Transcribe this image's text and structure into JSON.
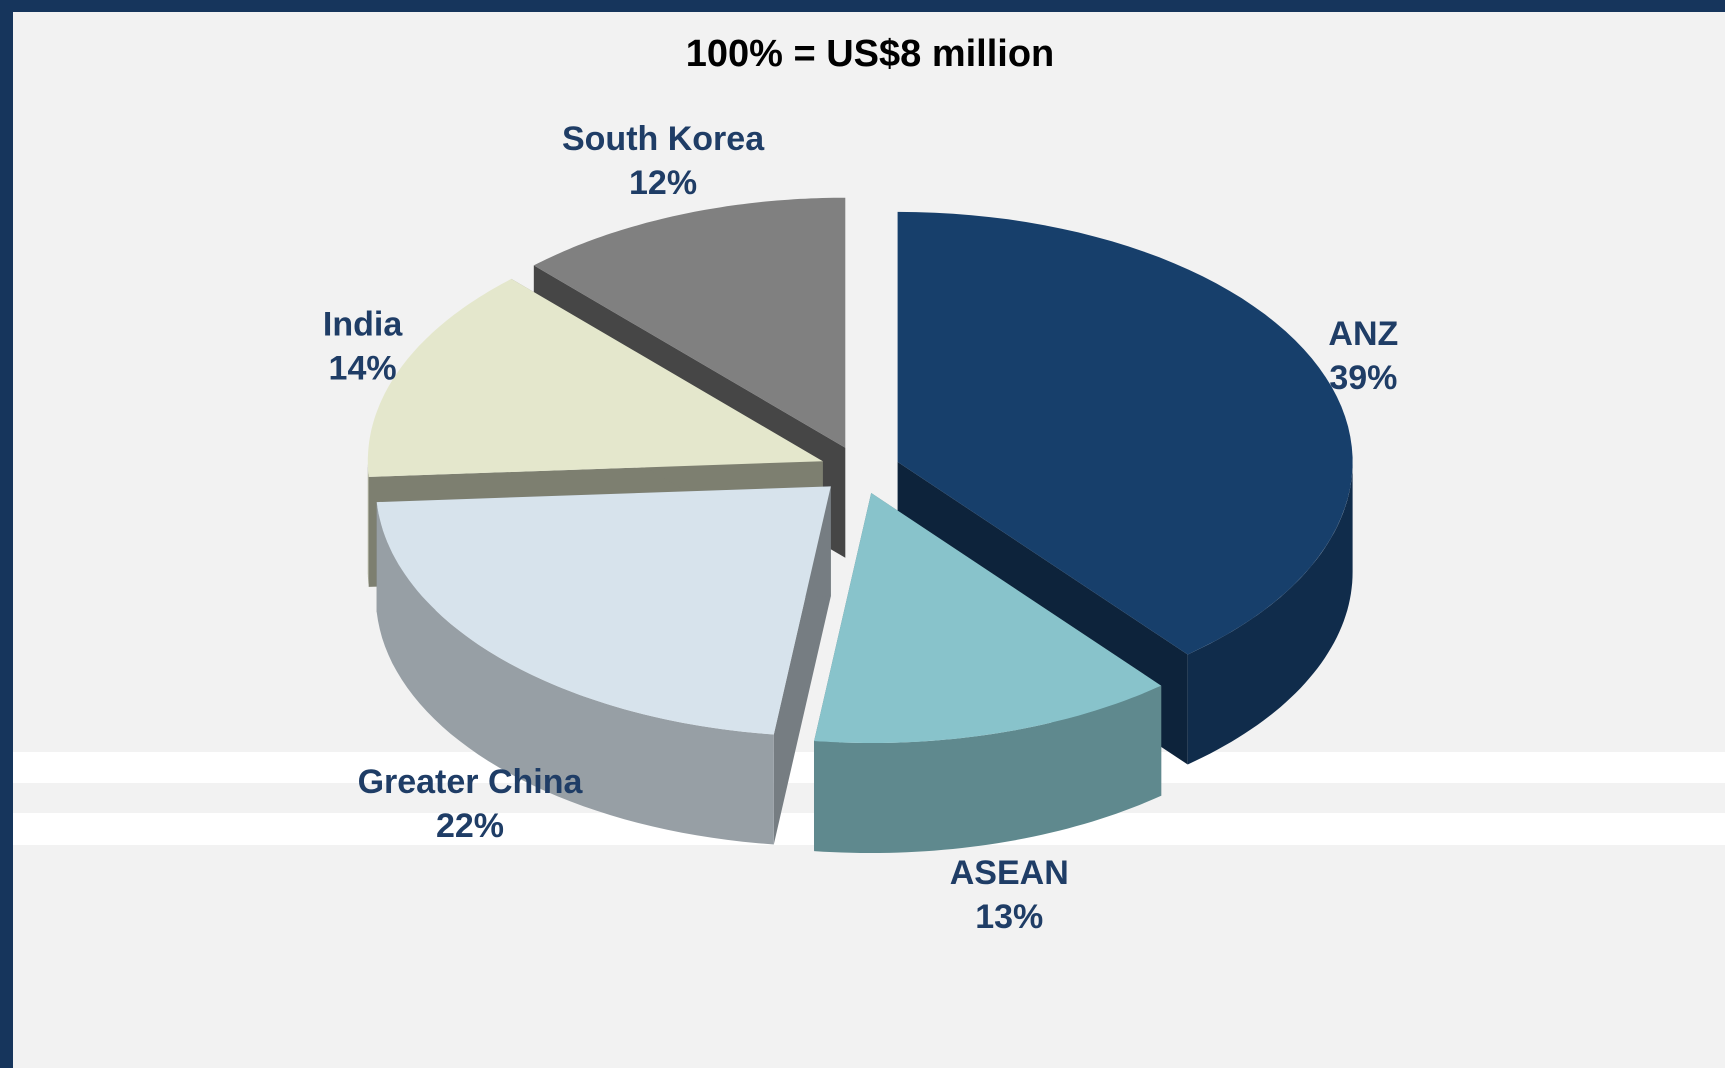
{
  "chart_data": {
    "type": "pie",
    "title": "100% = US$8 million",
    "categories": [
      "ANZ",
      "ASEAN",
      "Greater China",
      "India",
      "South Korea"
    ],
    "values": [
      39,
      13,
      22,
      14,
      12
    ],
    "value_labels": [
      "39%",
      "13%",
      "22%",
      "14%",
      "12%"
    ],
    "colors": [
      "#173f6b",
      "#88c3cb",
      "#d7e3ec",
      "#e4e7cc",
      "#808080"
    ]
  }
}
